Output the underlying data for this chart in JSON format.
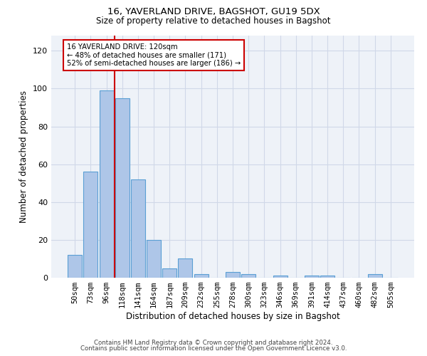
{
  "title1": "16, YAVERLAND DRIVE, BAGSHOT, GU19 5DX",
  "title2": "Size of property relative to detached houses in Bagshot",
  "xlabel": "Distribution of detached houses by size in Bagshot",
  "ylabel": "Number of detached properties",
  "bar_labels": [
    "50sqm",
    "73sqm",
    "96sqm",
    "118sqm",
    "141sqm",
    "164sqm",
    "187sqm",
    "209sqm",
    "232sqm",
    "255sqm",
    "278sqm",
    "300sqm",
    "323sqm",
    "346sqm",
    "369sqm",
    "391sqm",
    "414sqm",
    "437sqm",
    "460sqm",
    "482sqm",
    "505sqm"
  ],
  "bar_values": [
    12,
    56,
    99,
    95,
    52,
    20,
    5,
    10,
    2,
    0,
    3,
    2,
    0,
    1,
    0,
    1,
    1,
    0,
    0,
    2,
    0
  ],
  "bar_color": "#aec6e8",
  "bar_edge_color": "#5a9fd4",
  "vline_x": 2.5,
  "vline_color": "#cc0000",
  "annotation_text": "16 YAVERLAND DRIVE: 120sqm\n← 48% of detached houses are smaller (171)\n52% of semi-detached houses are larger (186) →",
  "annotation_box_color": "#ffffff",
  "annotation_box_edge": "#cc0000",
  "ylim": [
    0,
    128
  ],
  "yticks": [
    0,
    20,
    40,
    60,
    80,
    100,
    120
  ],
  "grid_color": "#d0d8e8",
  "bg_color": "#eef2f8",
  "footer1": "Contains HM Land Registry data © Crown copyright and database right 2024.",
  "footer2": "Contains public sector information licensed under the Open Government Licence v3.0."
}
